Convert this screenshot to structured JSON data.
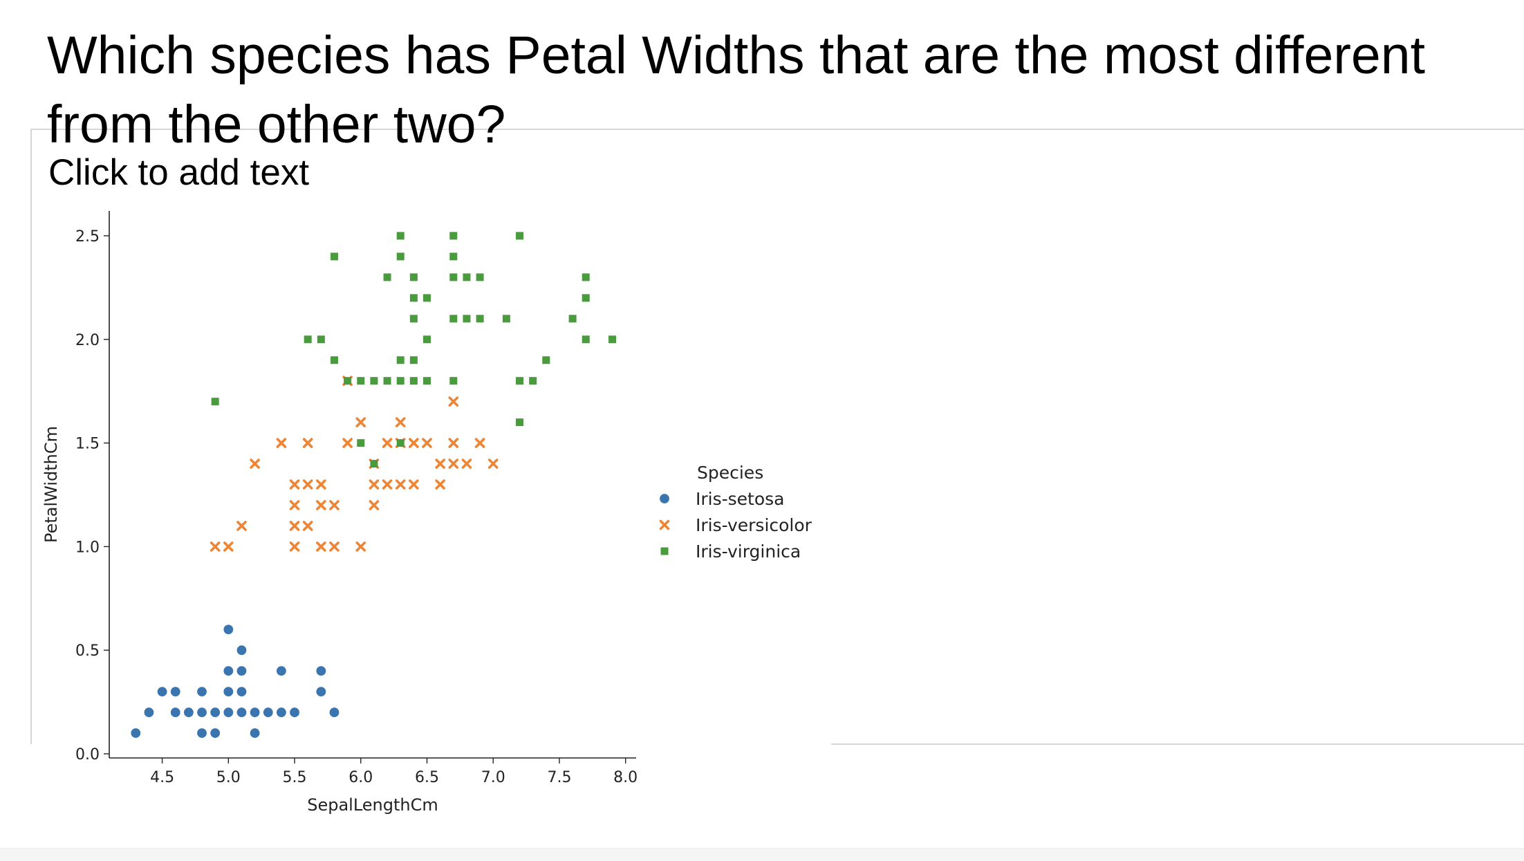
{
  "slide": {
    "title": "Which species has Petal Widths that are the most different from the other two?",
    "placeholder": "Click to add text"
  },
  "chart_data": {
    "type": "scatter",
    "xlabel": "SepalLengthCm",
    "ylabel": "PetalWidthCm",
    "xlim": [
      4.1,
      8.08
    ],
    "ylim": [
      -0.02,
      2.62
    ],
    "x_ticks": [
      "4.5",
      "5.0",
      "5.5",
      "6.0",
      "6.5",
      "7.0",
      "7.5",
      "8.0"
    ],
    "y_ticks": [
      "0.0",
      "0.5",
      "1.0",
      "1.5",
      "2.0",
      "2.5"
    ],
    "grid": false,
    "legend": {
      "title": "Species",
      "placement": "right"
    },
    "series": [
      {
        "name": "Iris-setosa",
        "marker": "circle",
        "color": "#3a75b0",
        "points": [
          [
            4.3,
            0.1
          ],
          [
            4.4,
            0.2
          ],
          [
            4.5,
            0.3
          ],
          [
            4.6,
            0.2
          ],
          [
            4.6,
            0.3
          ],
          [
            4.7,
            0.2
          ],
          [
            4.8,
            0.1
          ],
          [
            4.8,
            0.2
          ],
          [
            4.8,
            0.3
          ],
          [
            4.9,
            0.1
          ],
          [
            4.9,
            0.2
          ],
          [
            5.0,
            0.2
          ],
          [
            5.0,
            0.3
          ],
          [
            5.0,
            0.4
          ],
          [
            5.0,
            0.6
          ],
          [
            5.1,
            0.2
          ],
          [
            5.1,
            0.3
          ],
          [
            5.1,
            0.4
          ],
          [
            5.1,
            0.5
          ],
          [
            5.2,
            0.1
          ],
          [
            5.2,
            0.2
          ],
          [
            5.3,
            0.2
          ],
          [
            5.4,
            0.2
          ],
          [
            5.4,
            0.4
          ],
          [
            5.5,
            0.2
          ],
          [
            5.7,
            0.3
          ],
          [
            5.7,
            0.4
          ],
          [
            5.8,
            0.2
          ]
        ]
      },
      {
        "name": "Iris-versicolor",
        "marker": "x",
        "color": "#ee8535",
        "points": [
          [
            4.9,
            1.0
          ],
          [
            5.0,
            1.0
          ],
          [
            5.1,
            1.1
          ],
          [
            5.2,
            1.4
          ],
          [
            5.4,
            1.5
          ],
          [
            5.5,
            1.0
          ],
          [
            5.5,
            1.1
          ],
          [
            5.5,
            1.2
          ],
          [
            5.5,
            1.3
          ],
          [
            5.6,
            1.1
          ],
          [
            5.6,
            1.3
          ],
          [
            5.6,
            1.5
          ],
          [
            5.7,
            1.0
          ],
          [
            5.7,
            1.2
          ],
          [
            5.7,
            1.3
          ],
          [
            5.8,
            1.0
          ],
          [
            5.8,
            1.2
          ],
          [
            5.9,
            1.5
          ],
          [
            5.9,
            1.8
          ],
          [
            6.0,
            1.0
          ],
          [
            6.0,
            1.6
          ],
          [
            6.1,
            1.2
          ],
          [
            6.1,
            1.3
          ],
          [
            6.1,
            1.4
          ],
          [
            6.2,
            1.3
          ],
          [
            6.2,
            1.5
          ],
          [
            6.3,
            1.3
          ],
          [
            6.3,
            1.5
          ],
          [
            6.3,
            1.6
          ],
          [
            6.4,
            1.3
          ],
          [
            6.4,
            1.5
          ],
          [
            6.5,
            1.5
          ],
          [
            6.6,
            1.3
          ],
          [
            6.6,
            1.4
          ],
          [
            6.7,
            1.4
          ],
          [
            6.7,
            1.5
          ],
          [
            6.7,
            1.7
          ],
          [
            6.8,
            1.4
          ],
          [
            6.9,
            1.5
          ],
          [
            7.0,
            1.4
          ]
        ]
      },
      {
        "name": "Iris-virginica",
        "marker": "square",
        "color": "#4a9a3e",
        "points": [
          [
            4.9,
            1.7
          ],
          [
            5.6,
            2.0
          ],
          [
            5.7,
            2.0
          ],
          [
            5.8,
            1.9
          ],
          [
            5.8,
            2.4
          ],
          [
            5.9,
            1.8
          ],
          [
            6.0,
            1.5
          ],
          [
            6.0,
            1.8
          ],
          [
            6.1,
            1.4
          ],
          [
            6.1,
            1.8
          ],
          [
            6.2,
            1.8
          ],
          [
            6.2,
            2.3
          ],
          [
            6.3,
            1.5
          ],
          [
            6.3,
            1.8
          ],
          [
            6.3,
            1.9
          ],
          [
            6.3,
            2.4
          ],
          [
            6.3,
            2.5
          ],
          [
            6.4,
            1.8
          ],
          [
            6.4,
            1.9
          ],
          [
            6.4,
            2.1
          ],
          [
            6.4,
            2.2
          ],
          [
            6.4,
            2.3
          ],
          [
            6.5,
            1.8
          ],
          [
            6.5,
            2.0
          ],
          [
            6.5,
            2.2
          ],
          [
            6.7,
            1.8
          ],
          [
            6.7,
            2.1
          ],
          [
            6.7,
            2.3
          ],
          [
            6.7,
            2.4
          ],
          [
            6.7,
            2.5
          ],
          [
            6.8,
            2.1
          ],
          [
            6.8,
            2.3
          ],
          [
            6.9,
            2.1
          ],
          [
            6.9,
            2.3
          ],
          [
            7.1,
            2.1
          ],
          [
            7.2,
            1.6
          ],
          [
            7.2,
            1.8
          ],
          [
            7.2,
            2.5
          ],
          [
            7.3,
            1.8
          ],
          [
            7.4,
            1.9
          ],
          [
            7.6,
            2.1
          ],
          [
            7.7,
            2.0
          ],
          [
            7.7,
            2.2
          ],
          [
            7.7,
            2.3
          ],
          [
            7.9,
            2.0
          ]
        ]
      }
    ]
  }
}
